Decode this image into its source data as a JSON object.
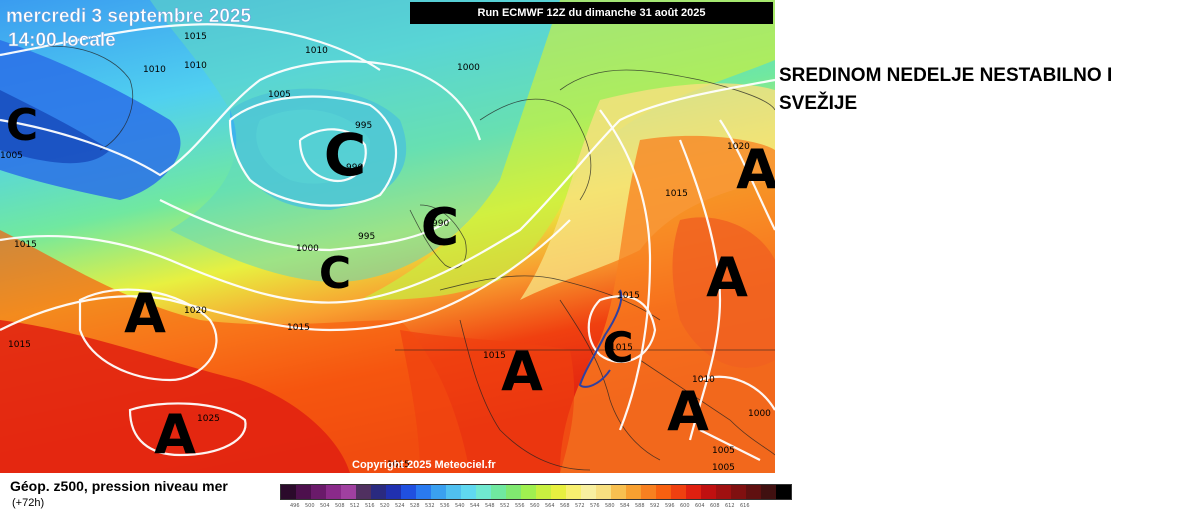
{
  "map": {
    "date_line": "mercredi 3 septembre 2025",
    "time_line": "14:00 locale",
    "run_banner": "Run ECMWF 12Z du dimanche 31 août 2025",
    "copyright": "Copyright 2025 Meteociel.fr",
    "pressure_centers": [
      {
        "letter": "C",
        "kind": "low"
      },
      {
        "letter": "C",
        "kind": "low"
      },
      {
        "letter": "C",
        "kind": "low"
      },
      {
        "letter": "C",
        "kind": "low"
      },
      {
        "letter": "C",
        "kind": "low"
      },
      {
        "letter": "A",
        "kind": "high"
      },
      {
        "letter": "A",
        "kind": "high"
      },
      {
        "letter": "A",
        "kind": "high"
      },
      {
        "letter": "A",
        "kind": "high"
      },
      {
        "letter": "A",
        "kind": "high"
      },
      {
        "letter": "A",
        "kind": "high"
      }
    ],
    "isobar_labels": [
      "1015",
      "1010",
      "1010",
      "1010",
      "1005",
      "1000",
      "1005",
      "995",
      "990",
      "995",
      "990",
      "1000",
      "1015",
      "1015",
      "1020",
      "1015",
      "1025",
      "1015",
      "1015",
      "1015",
      "1020",
      "1010",
      "1000",
      "1005",
      "1005",
      "1015",
      "1015"
    ]
  },
  "headline": "SREDINOM NEDELJE NESTABILNO I SVEŽIJE",
  "legend": {
    "title": "Géop. z500, pression niveau mer",
    "subtitle": "(+72h)",
    "colors": [
      "#2b0a2b",
      "#4d104d",
      "#6a1a6a",
      "#8a2a8a",
      "#a040a0",
      "#503060",
      "#2a2a80",
      "#2030b0",
      "#2050e0",
      "#2a7af0",
      "#3aa0f0",
      "#50c0f0",
      "#60d8f0",
      "#70e8d0",
      "#70e8a0",
      "#80e870",
      "#a0f050",
      "#c8f040",
      "#e8f040",
      "#f8f070",
      "#f8f0a0",
      "#f8e080",
      "#f8c050",
      "#f8a030",
      "#f88020",
      "#f86010",
      "#f04010",
      "#e02010",
      "#c01010",
      "#a01010",
      "#801010",
      "#601010",
      "#401010",
      "#000000"
    ],
    "ticks": [
      "496",
      "500",
      "504",
      "508",
      "512",
      "516",
      "520",
      "524",
      "528",
      "532",
      "536",
      "540",
      "544",
      "548",
      "552",
      "556",
      "560",
      "564",
      "568",
      "572",
      "576",
      "580",
      "584",
      "588",
      "592",
      "596",
      "600",
      "604",
      "608",
      "612",
      "616"
    ]
  }
}
